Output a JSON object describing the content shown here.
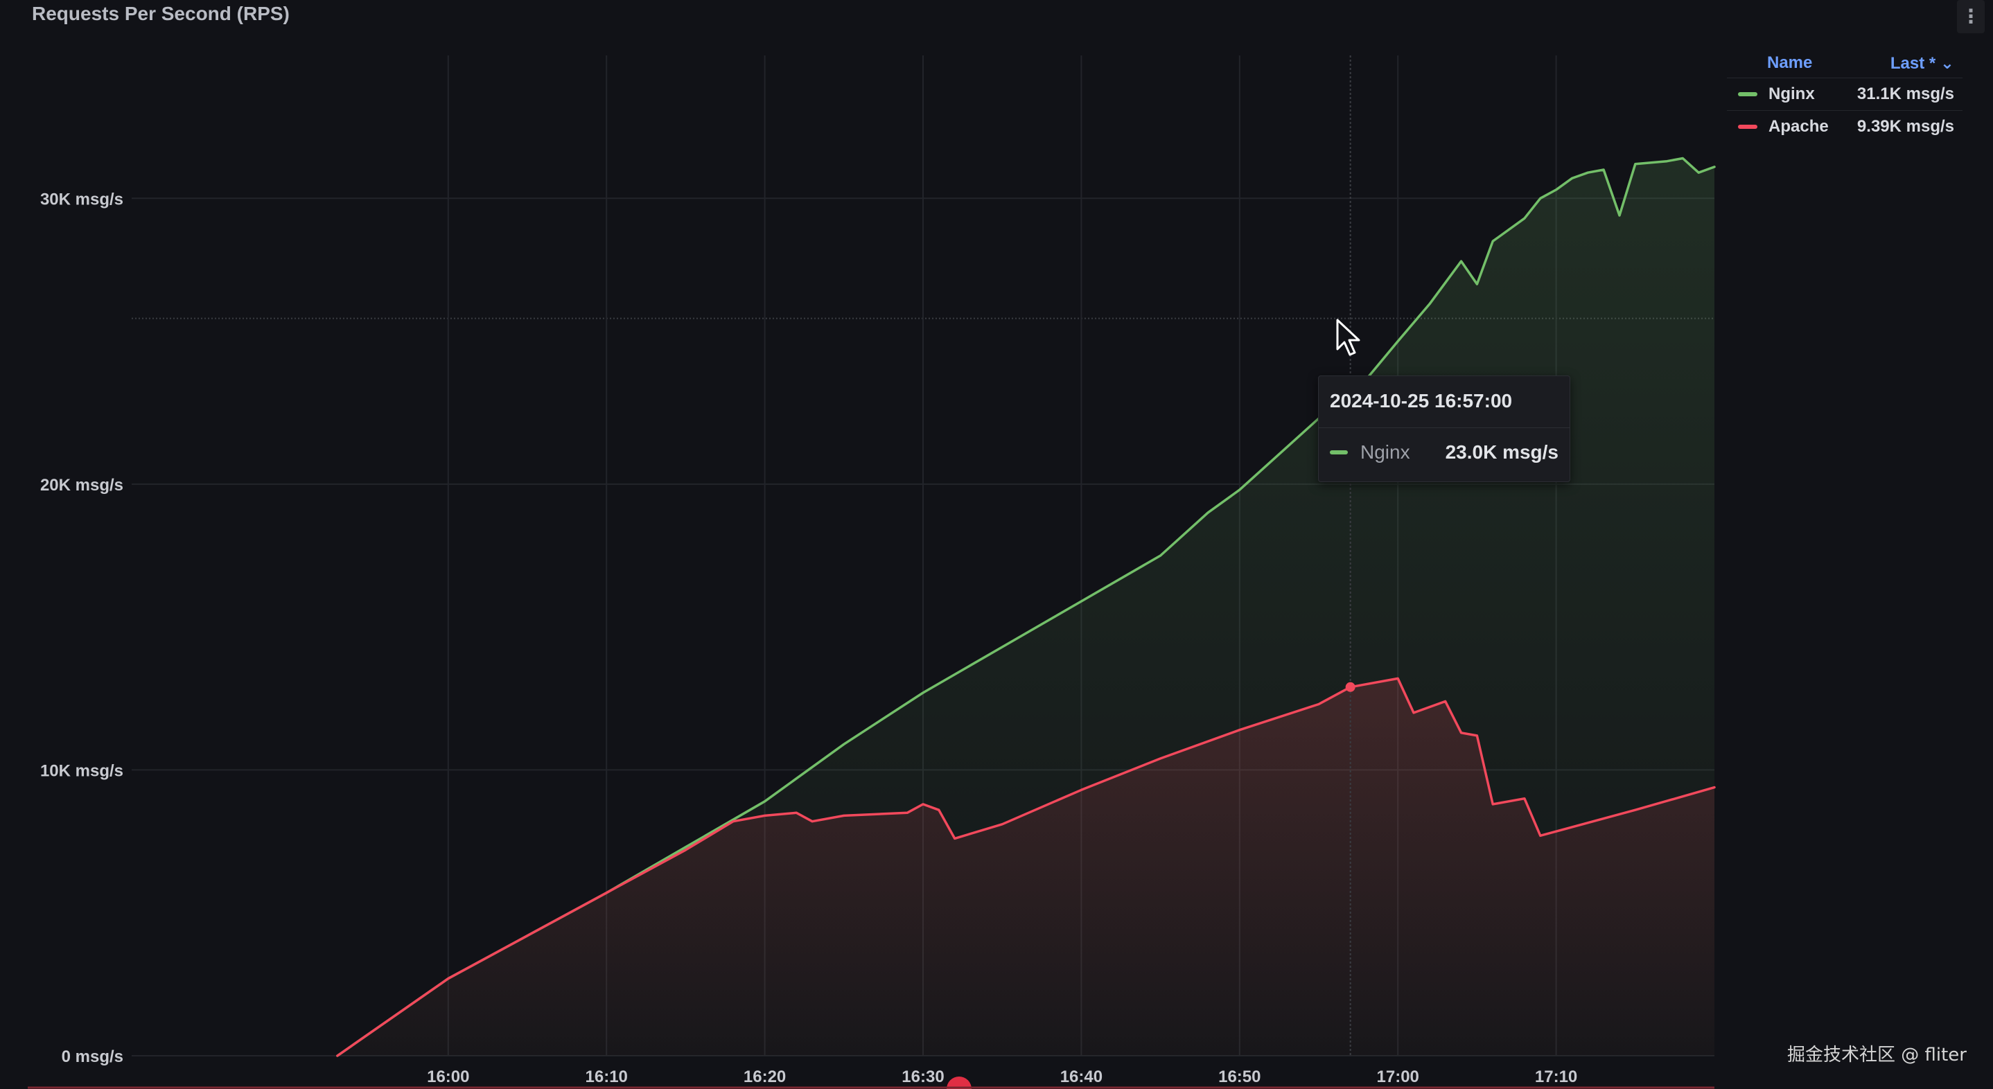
{
  "panel": {
    "title": "Requests Per Second (RPS)",
    "menu_icon": "kebab-menu-icon"
  },
  "legend": {
    "header_name": "Name",
    "header_last": "Last * ⌄",
    "rows": [
      {
        "name": "Nginx",
        "value": "31.1K msg/s",
        "color": "#73bf69"
      },
      {
        "name": "Apache",
        "value": "9.39K msg/s",
        "color": "#f2495c"
      }
    ]
  },
  "tooltip": {
    "time": "2024-10-25 16:57:00",
    "series": "Nginx",
    "value": "23.0K msg/s"
  },
  "watermark": "掘金技术社区 @ fliter",
  "chart_data": {
    "type": "area",
    "title": "Requests Per Second (RPS)",
    "y_unit": "msg/s",
    "ylim": [
      0,
      35000
    ],
    "y_ticks": [
      {
        "value": 0,
        "label": "0 msg/s"
      },
      {
        "value": 10000,
        "label": "10K msg/s"
      },
      {
        "value": 20000,
        "label": "20K msg/s"
      },
      {
        "value": 30000,
        "label": "30K msg/s"
      }
    ],
    "x_range": [
      "15:53",
      "17:20"
    ],
    "x_ticks": [
      "16:00",
      "16:10",
      "16:20",
      "16:30",
      "16:40",
      "16:50",
      "17:00",
      "17:10"
    ],
    "grid": true,
    "legend_position": "right",
    "series": [
      {
        "name": "Nginx",
        "color": "#73bf69",
        "points": [
          [
            "15:53",
            0
          ],
          [
            "16:00",
            2700
          ],
          [
            "16:10",
            5700
          ],
          [
            "16:15",
            7300
          ],
          [
            "16:20",
            8900
          ],
          [
            "16:25",
            10900
          ],
          [
            "16:30",
            12700
          ],
          [
            "16:35",
            14300
          ],
          [
            "16:40",
            15900
          ],
          [
            "16:45",
            17500
          ],
          [
            "16:48",
            19000
          ],
          [
            "16:50",
            19800
          ],
          [
            "16:55",
            22300
          ],
          [
            "16:57",
            23000
          ],
          [
            "17:00",
            25000
          ],
          [
            "17:02",
            26300
          ],
          [
            "17:04",
            27800
          ],
          [
            "17:05",
            27000
          ],
          [
            "17:06",
            28500
          ],
          [
            "17:08",
            29300
          ],
          [
            "17:09",
            30000
          ],
          [
            "17:10",
            30300
          ],
          [
            "17:11",
            30700
          ],
          [
            "17:12",
            30900
          ],
          [
            "17:13",
            31000
          ],
          [
            "17:14",
            29400
          ],
          [
            "17:15",
            31200
          ],
          [
            "17:17",
            31300
          ],
          [
            "17:18",
            31400
          ],
          [
            "17:19",
            30900
          ],
          [
            "17:20",
            31100
          ]
        ]
      },
      {
        "name": "Apache",
        "color": "#f2495c",
        "points": [
          [
            "15:53",
            0
          ],
          [
            "16:00",
            2700
          ],
          [
            "16:10",
            5700
          ],
          [
            "16:15",
            7200
          ],
          [
            "16:18",
            8200
          ],
          [
            "16:20",
            8400
          ],
          [
            "16:22",
            8500
          ],
          [
            "16:23",
            8200
          ],
          [
            "16:25",
            8400
          ],
          [
            "16:29",
            8500
          ],
          [
            "16:30",
            8800
          ],
          [
            "16:31",
            8600
          ],
          [
            "16:32",
            7600
          ],
          [
            "16:35",
            8100
          ],
          [
            "16:40",
            9300
          ],
          [
            "16:45",
            10400
          ],
          [
            "16:50",
            11400
          ],
          [
            "16:55",
            12300
          ],
          [
            "16:57",
            12900
          ],
          [
            "17:00",
            13200
          ],
          [
            "17:01",
            12000
          ],
          [
            "17:03",
            12400
          ],
          [
            "17:04",
            11300
          ],
          [
            "17:05",
            11200
          ],
          [
            "17:06",
            8800
          ],
          [
            "17:08",
            9000
          ],
          [
            "17:09",
            7700
          ],
          [
            "17:15",
            8600
          ],
          [
            "17:20",
            9390
          ]
        ]
      }
    ]
  }
}
